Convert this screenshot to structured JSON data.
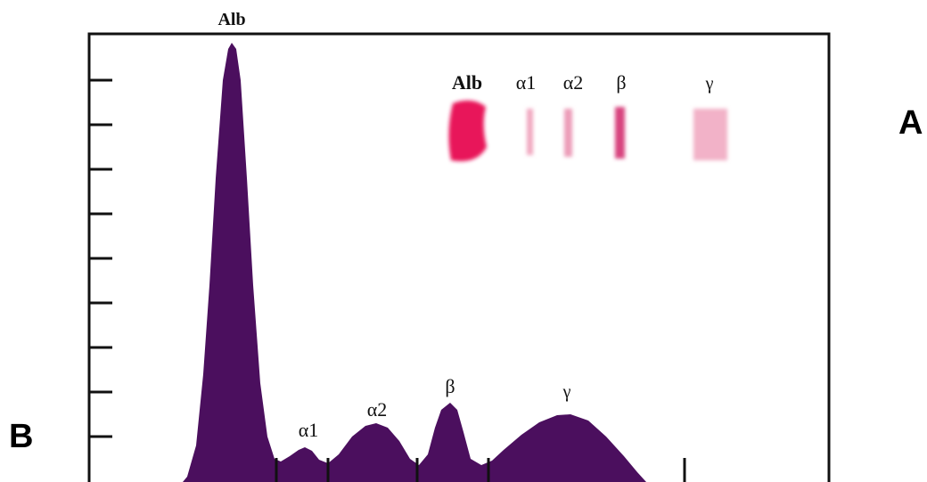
{
  "figure": {
    "trace_labels": [
      "Alb",
      "α1",
      "α2",
      "β",
      "γ"
    ],
    "gel_labels": [
      "Alb",
      "α1",
      "α2",
      "β",
      "γ"
    ],
    "panel_labels": [
      "A",
      "B"
    ]
  }
}
